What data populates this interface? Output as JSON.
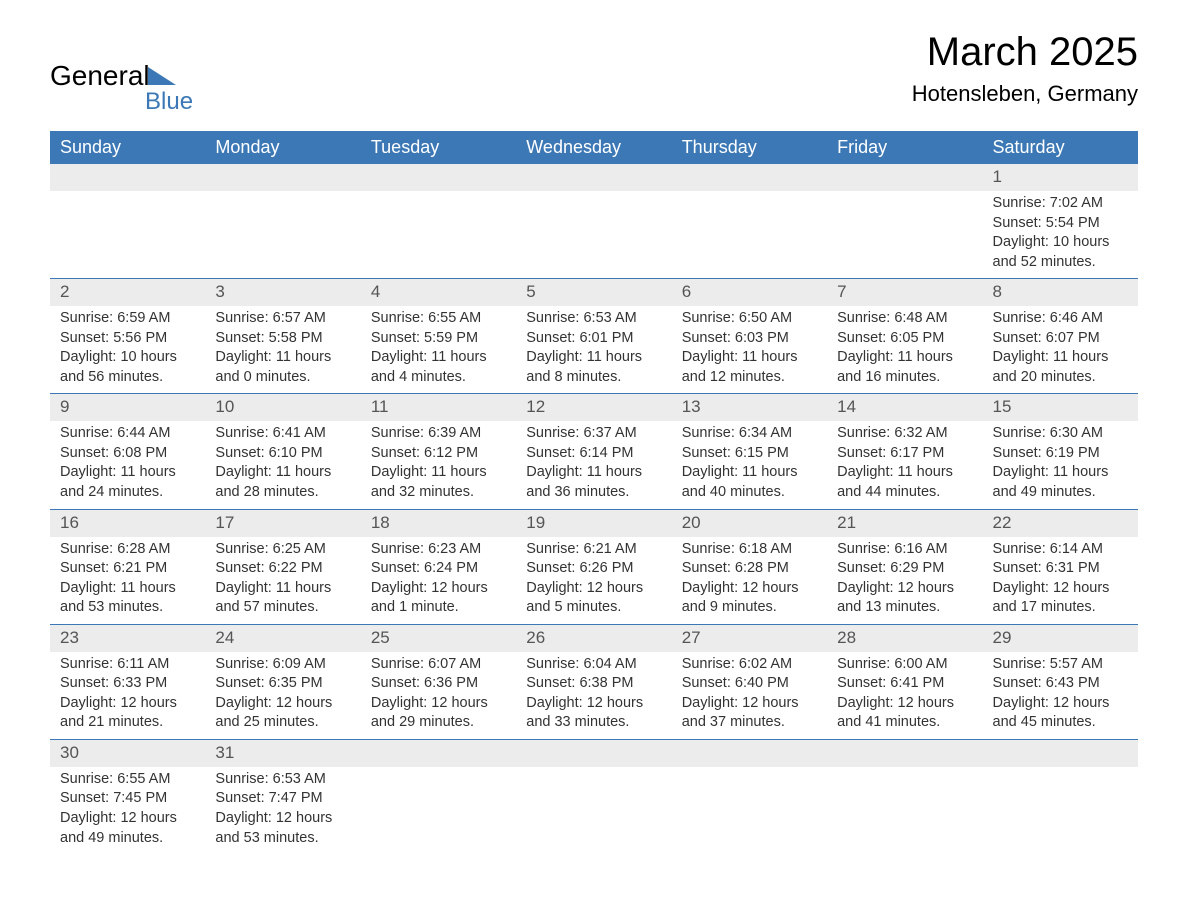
{
  "logo": {
    "part1": "General",
    "part2": "Blue"
  },
  "title": "March 2025",
  "location": "Hotensleben, Germany",
  "colors": {
    "header_bg": "#3b78b5",
    "header_text": "#ffffff",
    "daynum_bg": "#ececec",
    "row_border": "#3b78b5"
  },
  "weekdays": [
    "Sunday",
    "Monday",
    "Tuesday",
    "Wednesday",
    "Thursday",
    "Friday",
    "Saturday"
  ],
  "weeks": [
    [
      null,
      null,
      null,
      null,
      null,
      null,
      {
        "n": "1",
        "sr": "Sunrise: 7:02 AM",
        "ss": "Sunset: 5:54 PM",
        "d1": "Daylight: 10 hours",
        "d2": "and 52 minutes."
      }
    ],
    [
      {
        "n": "2",
        "sr": "Sunrise: 6:59 AM",
        "ss": "Sunset: 5:56 PM",
        "d1": "Daylight: 10 hours",
        "d2": "and 56 minutes."
      },
      {
        "n": "3",
        "sr": "Sunrise: 6:57 AM",
        "ss": "Sunset: 5:58 PM",
        "d1": "Daylight: 11 hours",
        "d2": "and 0 minutes."
      },
      {
        "n": "4",
        "sr": "Sunrise: 6:55 AM",
        "ss": "Sunset: 5:59 PM",
        "d1": "Daylight: 11 hours",
        "d2": "and 4 minutes."
      },
      {
        "n": "5",
        "sr": "Sunrise: 6:53 AM",
        "ss": "Sunset: 6:01 PM",
        "d1": "Daylight: 11 hours",
        "d2": "and 8 minutes."
      },
      {
        "n": "6",
        "sr": "Sunrise: 6:50 AM",
        "ss": "Sunset: 6:03 PM",
        "d1": "Daylight: 11 hours",
        "d2": "and 12 minutes."
      },
      {
        "n": "7",
        "sr": "Sunrise: 6:48 AM",
        "ss": "Sunset: 6:05 PM",
        "d1": "Daylight: 11 hours",
        "d2": "and 16 minutes."
      },
      {
        "n": "8",
        "sr": "Sunrise: 6:46 AM",
        "ss": "Sunset: 6:07 PM",
        "d1": "Daylight: 11 hours",
        "d2": "and 20 minutes."
      }
    ],
    [
      {
        "n": "9",
        "sr": "Sunrise: 6:44 AM",
        "ss": "Sunset: 6:08 PM",
        "d1": "Daylight: 11 hours",
        "d2": "and 24 minutes."
      },
      {
        "n": "10",
        "sr": "Sunrise: 6:41 AM",
        "ss": "Sunset: 6:10 PM",
        "d1": "Daylight: 11 hours",
        "d2": "and 28 minutes."
      },
      {
        "n": "11",
        "sr": "Sunrise: 6:39 AM",
        "ss": "Sunset: 6:12 PM",
        "d1": "Daylight: 11 hours",
        "d2": "and 32 minutes."
      },
      {
        "n": "12",
        "sr": "Sunrise: 6:37 AM",
        "ss": "Sunset: 6:14 PM",
        "d1": "Daylight: 11 hours",
        "d2": "and 36 minutes."
      },
      {
        "n": "13",
        "sr": "Sunrise: 6:34 AM",
        "ss": "Sunset: 6:15 PM",
        "d1": "Daylight: 11 hours",
        "d2": "and 40 minutes."
      },
      {
        "n": "14",
        "sr": "Sunrise: 6:32 AM",
        "ss": "Sunset: 6:17 PM",
        "d1": "Daylight: 11 hours",
        "d2": "and 44 minutes."
      },
      {
        "n": "15",
        "sr": "Sunrise: 6:30 AM",
        "ss": "Sunset: 6:19 PM",
        "d1": "Daylight: 11 hours",
        "d2": "and 49 minutes."
      }
    ],
    [
      {
        "n": "16",
        "sr": "Sunrise: 6:28 AM",
        "ss": "Sunset: 6:21 PM",
        "d1": "Daylight: 11 hours",
        "d2": "and 53 minutes."
      },
      {
        "n": "17",
        "sr": "Sunrise: 6:25 AM",
        "ss": "Sunset: 6:22 PM",
        "d1": "Daylight: 11 hours",
        "d2": "and 57 minutes."
      },
      {
        "n": "18",
        "sr": "Sunrise: 6:23 AM",
        "ss": "Sunset: 6:24 PM",
        "d1": "Daylight: 12 hours",
        "d2": "and 1 minute."
      },
      {
        "n": "19",
        "sr": "Sunrise: 6:21 AM",
        "ss": "Sunset: 6:26 PM",
        "d1": "Daylight: 12 hours",
        "d2": "and 5 minutes."
      },
      {
        "n": "20",
        "sr": "Sunrise: 6:18 AM",
        "ss": "Sunset: 6:28 PM",
        "d1": "Daylight: 12 hours",
        "d2": "and 9 minutes."
      },
      {
        "n": "21",
        "sr": "Sunrise: 6:16 AM",
        "ss": "Sunset: 6:29 PM",
        "d1": "Daylight: 12 hours",
        "d2": "and 13 minutes."
      },
      {
        "n": "22",
        "sr": "Sunrise: 6:14 AM",
        "ss": "Sunset: 6:31 PM",
        "d1": "Daylight: 12 hours",
        "d2": "and 17 minutes."
      }
    ],
    [
      {
        "n": "23",
        "sr": "Sunrise: 6:11 AM",
        "ss": "Sunset: 6:33 PM",
        "d1": "Daylight: 12 hours",
        "d2": "and 21 minutes."
      },
      {
        "n": "24",
        "sr": "Sunrise: 6:09 AM",
        "ss": "Sunset: 6:35 PM",
        "d1": "Daylight: 12 hours",
        "d2": "and 25 minutes."
      },
      {
        "n": "25",
        "sr": "Sunrise: 6:07 AM",
        "ss": "Sunset: 6:36 PM",
        "d1": "Daylight: 12 hours",
        "d2": "and 29 minutes."
      },
      {
        "n": "26",
        "sr": "Sunrise: 6:04 AM",
        "ss": "Sunset: 6:38 PM",
        "d1": "Daylight: 12 hours",
        "d2": "and 33 minutes."
      },
      {
        "n": "27",
        "sr": "Sunrise: 6:02 AM",
        "ss": "Sunset: 6:40 PM",
        "d1": "Daylight: 12 hours",
        "d2": "and 37 minutes."
      },
      {
        "n": "28",
        "sr": "Sunrise: 6:00 AM",
        "ss": "Sunset: 6:41 PM",
        "d1": "Daylight: 12 hours",
        "d2": "and 41 minutes."
      },
      {
        "n": "29",
        "sr": "Sunrise: 5:57 AM",
        "ss": "Sunset: 6:43 PM",
        "d1": "Daylight: 12 hours",
        "d2": "and 45 minutes."
      }
    ],
    [
      {
        "n": "30",
        "sr": "Sunrise: 6:55 AM",
        "ss": "Sunset: 7:45 PM",
        "d1": "Daylight: 12 hours",
        "d2": "and 49 minutes."
      },
      {
        "n": "31",
        "sr": "Sunrise: 6:53 AM",
        "ss": "Sunset: 7:47 PM",
        "d1": "Daylight: 12 hours",
        "d2": "and 53 minutes."
      },
      null,
      null,
      null,
      null,
      null
    ]
  ]
}
